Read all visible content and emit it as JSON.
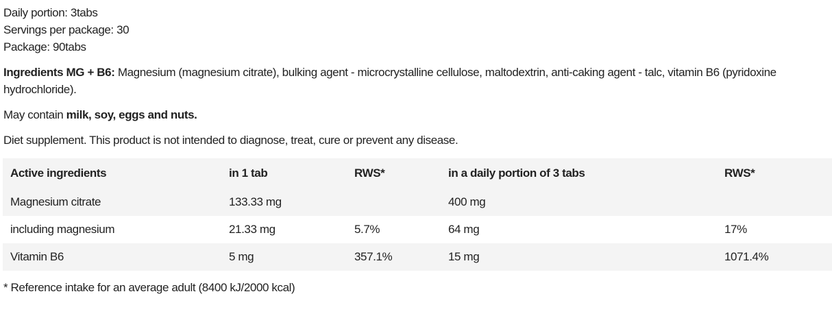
{
  "info": {
    "daily_portion": "Daily portion: 3tabs",
    "servings": "Servings per package: 30",
    "package": "Package: 90tabs"
  },
  "ingredients": {
    "label": "Ingredients MG + B6:",
    "text": " Magnesium (magnesium citrate), bulking agent - microcrystalline cellulose, maltodextrin, anti-caking agent - talc, vitamin B6 (pyridoxine hydrochloride)."
  },
  "allergens": {
    "prefix": "May contain ",
    "bold": "milk, soy, eggs and nuts."
  },
  "disclaimer": "Diet supplement. This product is not intended to diagnose, treat, cure or prevent any disease.",
  "table": {
    "headers": [
      "Active ingredients",
      "in 1 tab",
      "RWS*",
      "in a daily portion of 3 tabs",
      "RWS*"
    ],
    "rows": [
      [
        "Magnesium citrate",
        "133.33 mg",
        "",
        "400 mg",
        ""
      ],
      [
        "including magnesium",
        "21.33 mg",
        "5.7%",
        "64 mg",
        "17%"
      ],
      [
        "Vitamin B6",
        "5 mg",
        "357.1%",
        "15 mg",
        "1071.4%"
      ]
    ]
  },
  "footnote": "* Reference intake for an average adult (8400 kJ/2000 kcal)"
}
